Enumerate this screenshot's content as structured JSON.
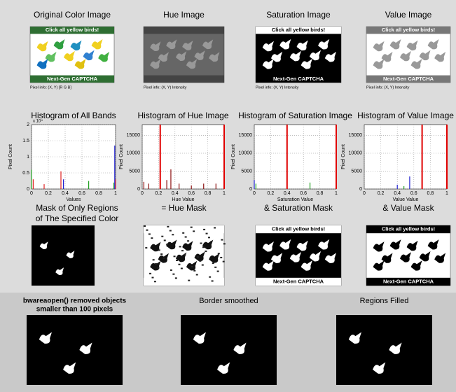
{
  "top_row": [
    {
      "title": "Original Color Image",
      "caption": "Pixel info: (X, Y) [R G B]"
    },
    {
      "title": "Hue Image",
      "caption": "Pixel info: (X, Y) Intensity"
    },
    {
      "title": "Saturation Image",
      "caption": "Pixel info: (X, Y) Intensity"
    },
    {
      "title": "Value Image",
      "caption": "Pixel info: (X, Y) Intensity"
    }
  ],
  "captcha": {
    "header": "Click all yellow birds!",
    "footer": "Next-Gen CAPTCHA"
  },
  "histograms": [
    {
      "title": "Histogram of All Bands",
      "xlabel": "Values",
      "ylabel": "Pixel Count",
      "exponent": "x 10⁴",
      "xlim": [
        0,
        1
      ],
      "ylim": [
        0,
        2
      ],
      "xticks": [
        0,
        0.2,
        0.4,
        0.6,
        0.8,
        1
      ],
      "yticks": [
        0,
        0.5,
        1,
        1.5,
        2
      ],
      "series": [
        {
          "color": "#e02020",
          "x": [
            0.02,
            0.15,
            0.35,
            1
          ],
          "values": [
            0.3,
            0.15,
            0.55,
            0.3
          ]
        },
        {
          "color": "#20a020",
          "x": [
            0,
            0.68,
            0.98
          ],
          "values": [
            0.6,
            0.25,
            0.2
          ]
        },
        {
          "color": "#2020d0",
          "x": [
            0.38,
            0.99
          ],
          "values": [
            0.3,
            1.35
          ]
        }
      ],
      "thresholds": []
    },
    {
      "title": "Histogram of Hue Image",
      "xlabel": "Hue Value",
      "ylabel": "Pixel Count",
      "xlim": [
        0,
        1
      ],
      "ylim": [
        0,
        18000
      ],
      "xticks": [
        0,
        0.2,
        0.4,
        0.6,
        0.8,
        1
      ],
      "yticks": [
        0,
        5000,
        10000,
        15000
      ],
      "series": [
        {
          "color": "#8b1010",
          "x": [
            0.02,
            0.08,
            0.3,
            0.35,
            0.45,
            0.6,
            0.75,
            0.9
          ],
          "values": [
            2000,
            1500,
            2500,
            5500,
            1500,
            1000,
            1500,
            1500
          ]
        }
      ],
      "thresholds": [
        0.22,
        1
      ]
    },
    {
      "title": "Histogram of Saturation Image",
      "xlabel": "Saturation Value",
      "ylabel": "Pixel Count",
      "xlim": [
        0,
        1
      ],
      "ylim": [
        0,
        18000
      ],
      "xticks": [
        0,
        0.2,
        0.4,
        0.6,
        0.8,
        1
      ],
      "yticks": [
        0,
        5000,
        10000,
        15000
      ],
      "series": [
        {
          "color": "#2020d0",
          "x": [
            0
          ],
          "values": [
            2500
          ]
        },
        {
          "color": "#20a020",
          "x": [
            0.02,
            0.68
          ],
          "values": [
            1500,
            1800
          ]
        }
      ],
      "thresholds": [
        0.4,
        1
      ]
    },
    {
      "title": "Histogram of Value Image",
      "xlabel": "Value Value",
      "ylabel": "Pixel Count",
      "xlim": [
        0,
        1
      ],
      "ylim": [
        0,
        18000
      ],
      "xticks": [
        0,
        0.2,
        0.4,
        0.6,
        0.8,
        1
      ],
      "yticks": [
        0,
        5000,
        10000,
        15000
      ],
      "series": [
        {
          "color": "#2020d0",
          "x": [
            0.4,
            0.55
          ],
          "values": [
            1200,
            3500
          ]
        },
        {
          "color": "#20a020",
          "x": [
            0.48
          ],
          "values": [
            800
          ]
        }
      ],
      "thresholds": [
        0.7,
        1
      ]
    }
  ],
  "mask_row": [
    {
      "title_lines": [
        "Mask of Only Regions",
        "of The Specified Color"
      ]
    },
    {
      "title_lines": [
        "= Hue Mask"
      ]
    },
    {
      "title_lines": [
        "& Saturation Mask"
      ]
    },
    {
      "title_lines": [
        "& Value Mask"
      ]
    }
  ],
  "bottom_row": [
    {
      "title_lines": [
        "bwareaopen() removed objects",
        "smaller than 100 pixels"
      ]
    },
    {
      "title_lines": [
        "Border smoothed"
      ]
    },
    {
      "title_lines": [
        "Regions Filled"
      ]
    }
  ]
}
